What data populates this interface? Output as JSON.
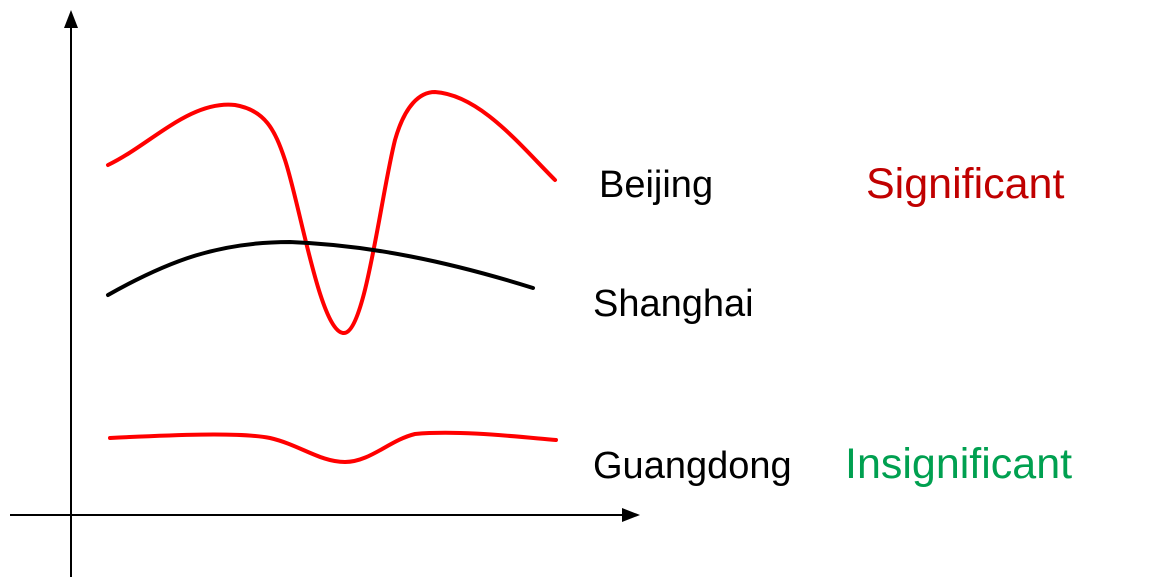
{
  "series": [
    {
      "label": "Beijing",
      "color": "#ff0000"
    },
    {
      "label": "Shanghai",
      "color": "#000000"
    },
    {
      "label": "Guangdong",
      "color": "#ff0000"
    }
  ],
  "annotations": {
    "significant": {
      "text": "Significant",
      "color": "#c00000"
    },
    "insignificant": {
      "text": "Insignificant",
      "color": "#00a050"
    }
  }
}
